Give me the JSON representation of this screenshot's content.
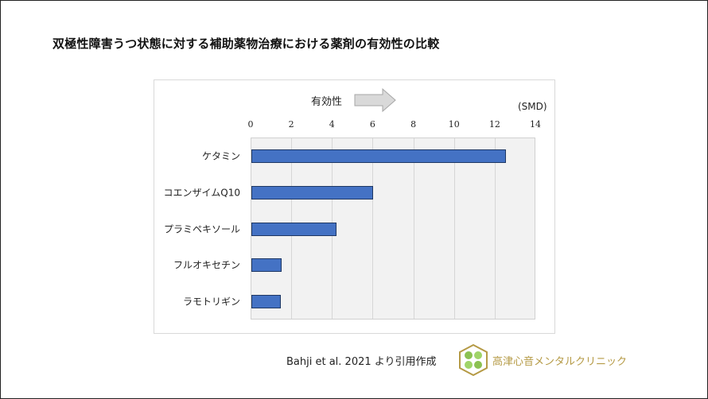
{
  "title": "双極性障害うつ状態に対する補助薬物治療における薬剤の有効性の比較",
  "effect_label": "有効性",
  "unit_label": "(SMD)",
  "source": "Bahji et al. 2021 より引用作成",
  "clinic_name": "高津心音メンタルクリニック",
  "colors": {
    "bar": "#4472c4",
    "bar_border": "#1f3864",
    "plot_bg": "#f2f2f2",
    "clinic": "#b59a45"
  },
  "chart_data": {
    "type": "bar",
    "orientation": "horizontal",
    "title": "双極性障害うつ状態に対する補助薬物治療における薬剤の有効性の比較",
    "categories": [
      "ケタミン",
      "コエンザイムQ10",
      "プラミペキソール",
      "フルオキセチン",
      "ラモトリギン"
    ],
    "values": [
      12.5,
      6.0,
      4.2,
      1.5,
      1.45
    ],
    "xlabel": "(SMD)",
    "ylabel": "",
    "xlim": [
      0,
      14
    ],
    "xticks": [
      "0",
      "2",
      "4",
      "6",
      "8",
      "10",
      "12",
      "14"
    ],
    "grid": true,
    "annotation": "有効性 →"
  }
}
